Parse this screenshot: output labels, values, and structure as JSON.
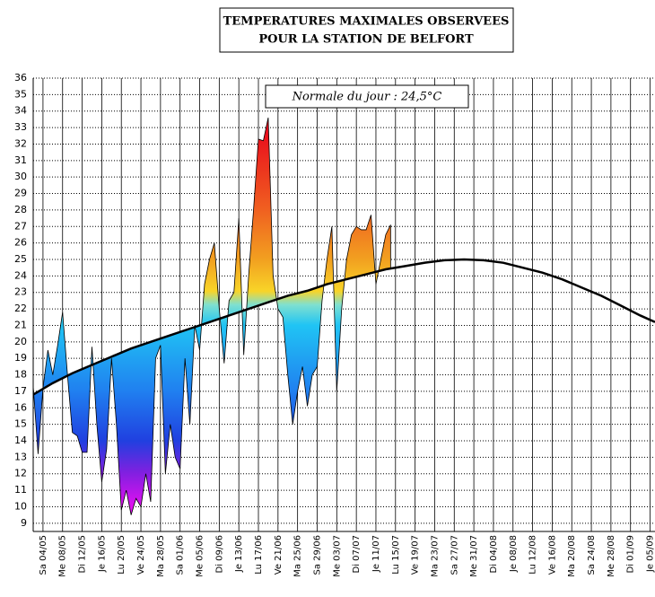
{
  "chart_data": {
    "type": "area-vs-normal",
    "title": [
      "TEMPERATURES MAXIMALES OBSERVEES",
      "POUR LA STATION DE BELFORT"
    ],
    "annotation": "Normale du jour : 24,5°C",
    "xlim": [
      "02/05",
      "06/09"
    ],
    "ylim": [
      8.5,
      36
    ],
    "yticks": [
      9,
      10,
      11,
      12,
      13,
      14,
      15,
      16,
      17,
      18,
      19,
      20,
      21,
      22,
      23,
      24,
      25,
      26,
      27,
      28,
      29,
      30,
      31,
      32,
      33,
      34,
      35,
      36
    ],
    "xticks": [
      {
        "value": "04/05",
        "label": "Sa 04/05"
      },
      {
        "value": "08/05",
        "label": "Me 08/05"
      },
      {
        "value": "12/05",
        "label": "Di 12/05"
      },
      {
        "value": "16/05",
        "label": "Je 16/05"
      },
      {
        "value": "20/05",
        "label": "Lu 20/05"
      },
      {
        "value": "24/05",
        "label": "Ve 24/05"
      },
      {
        "value": "28/05",
        "label": "Ma 28/05"
      },
      {
        "value": "01/06",
        "label": "Sa 01/06"
      },
      {
        "value": "05/06",
        "label": "Me 05/06"
      },
      {
        "value": "09/06",
        "label": "Di 09/06"
      },
      {
        "value": "13/06",
        "label": "Je 13/06"
      },
      {
        "value": "17/06",
        "label": "Lu 17/06"
      },
      {
        "value": "21/06",
        "label": "Ve 21/06"
      },
      {
        "value": "25/06",
        "label": "Ma 25/06"
      },
      {
        "value": "29/06",
        "label": "Sa 29/06"
      },
      {
        "value": "03/07",
        "label": "Me 03/07"
      },
      {
        "value": "07/07",
        "label": "Di 07/07"
      },
      {
        "value": "11/07",
        "label": "Je 11/07"
      },
      {
        "value": "15/07",
        "label": "Lu 15/07"
      },
      {
        "value": "19/07",
        "label": "Ve 19/07"
      },
      {
        "value": "23/07",
        "label": "Ma 23/07"
      },
      {
        "value": "27/07",
        "label": "Sa 27/07"
      },
      {
        "value": "31/07",
        "label": "Me 31/07"
      },
      {
        "value": "04/08",
        "label": "Di 04/08"
      },
      {
        "value": "08/08",
        "label": "Je 08/08"
      },
      {
        "value": "12/08",
        "label": "Lu 12/08"
      },
      {
        "value": "16/08",
        "label": "Ve 16/08"
      },
      {
        "value": "20/08",
        "label": "Ma 20/08"
      },
      {
        "value": "24/08",
        "label": "Sa 24/08"
      },
      {
        "value": "28/08",
        "label": "Me 28/08"
      },
      {
        "value": "01/09",
        "label": "Di 01/09"
      },
      {
        "value": "05/09",
        "label": "Je 05/09"
      }
    ],
    "grid": true,
    "series": [
      {
        "color": "#000000",
        "x": [
          "02/05",
          "03/05",
          "04/05",
          "05/05",
          "06/05",
          "07/05",
          "08/05",
          "09/05",
          "10/05",
          "11/05",
          "12/05",
          "13/05",
          "14/05",
          "15/05",
          "16/05",
          "17/05",
          "18/05",
          "19/05",
          "20/05",
          "21/05",
          "22/05",
          "23/05",
          "24/05",
          "25/05",
          "26/05",
          "27/05",
          "28/05",
          "29/05",
          "30/05",
          "31/05",
          "01/06",
          "02/06",
          "03/06",
          "04/06",
          "05/06",
          "06/06",
          "07/06",
          "08/06",
          "09/06",
          "10/06",
          "11/06",
          "12/06",
          "13/06",
          "14/06",
          "15/06",
          "16/06",
          "17/06",
          "18/06",
          "19/06",
          "20/06",
          "21/06",
          "22/06",
          "23/06",
          "24/06",
          "25/06",
          "26/06",
          "27/06",
          "28/06",
          "29/06",
          "30/06",
          "01/07",
          "02/07",
          "03/07",
          "04/07",
          "05/07",
          "06/07",
          "07/07",
          "08/07",
          "09/07",
          "10/07",
          "11/07",
          "12/07",
          "13/07",
          "14/07"
        ],
        "values": [
          17.3,
          13.2,
          17.2,
          19.5,
          18.0,
          19.8,
          21.8,
          18.0,
          14.5,
          14.3,
          13.3,
          13.3,
          19.7,
          15.0,
          11.5,
          13.5,
          19.0,
          15.0,
          9.8,
          11.0,
          9.5,
          10.5,
          10.0,
          12.0,
          10.3,
          19.0,
          19.8,
          12.0,
          15.0,
          13.0,
          12.3,
          19.0,
          15.0,
          21.0,
          19.5,
          23.5,
          25.0,
          26.0,
          22.0,
          18.7,
          22.5,
          23.0,
          27.5,
          19.2,
          24.0,
          28.0,
          32.3,
          32.2,
          33.6,
          24.0,
          22.0,
          21.5,
          18.0,
          15.0,
          17.0,
          18.5,
          16.1,
          18.0,
          18.5,
          22.5,
          25.0,
          27.0,
          17.0,
          22.0,
          25.0,
          26.5,
          27.0,
          26.8,
          26.8,
          27.7,
          23.5,
          25.0,
          26.5,
          27.1
        ]
      },
      {
        "color": "#000000",
        "x": [
          "02/05",
          "06/05",
          "10/05",
          "14/05",
          "18/05",
          "22/05",
          "26/05",
          "30/05",
          "03/06",
          "07/06",
          "11/06",
          "15/06",
          "19/06",
          "23/06",
          "27/06",
          "01/07",
          "05/07",
          "09/07",
          "13/07",
          "17/07",
          "21/07",
          "25/07",
          "29/07",
          "02/08",
          "06/08",
          "10/08",
          "14/08",
          "18/08",
          "22/08",
          "26/08",
          "30/08",
          "03/09",
          "06/09"
        ],
        "values": [
          16.8,
          17.5,
          18.1,
          18.6,
          19.1,
          19.6,
          20.0,
          20.4,
          20.8,
          21.2,
          21.6,
          22.0,
          22.4,
          22.8,
          23.1,
          23.5,
          23.8,
          24.1,
          24.4,
          24.6,
          24.8,
          24.95,
          25.0,
          24.95,
          24.8,
          24.5,
          24.2,
          23.8,
          23.3,
          22.8,
          22.2,
          21.6,
          21.2
        ]
      }
    ]
  }
}
